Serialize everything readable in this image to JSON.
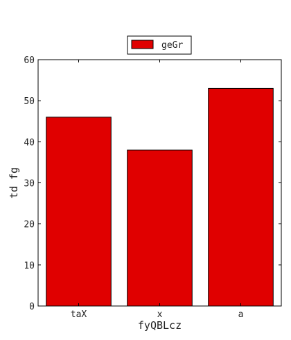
{
  "chart_data": {
    "type": "bar",
    "categories": [
      "taX",
      "x",
      "a"
    ],
    "series": [
      {
        "name": "geGr",
        "values": [
          46,
          38,
          53
        ],
        "color": "#e00000"
      }
    ],
    "xlabel": "fyQBLcz",
    "ylabel": "td fg",
    "ylim": [
      0,
      60
    ],
    "yticks": [
      0,
      10,
      20,
      30,
      40,
      50,
      60
    ],
    "grid": false,
    "legend_position": "top-center"
  }
}
